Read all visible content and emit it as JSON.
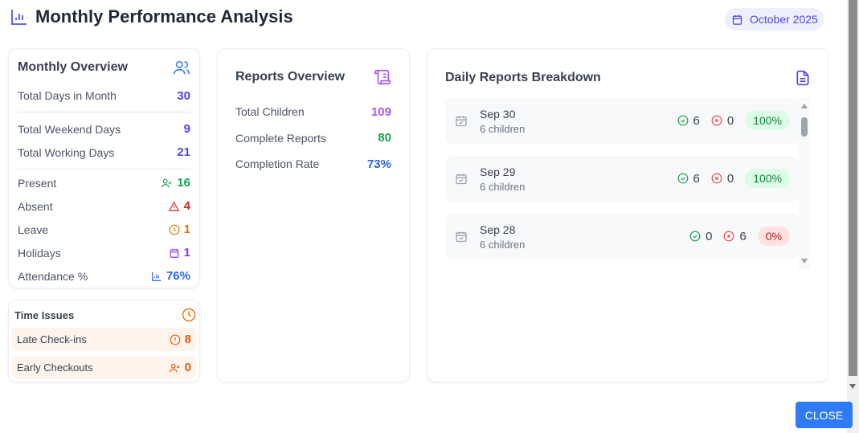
{
  "header": {
    "title": "Monthly Performance Analysis",
    "month": "October 2025"
  },
  "monthly": {
    "title": "Monthly Overview",
    "days": [
      {
        "label": "Total Days in Month",
        "value": "30"
      }
    ],
    "weekdays": [
      {
        "label": "Total Weekend Days",
        "value": "9"
      },
      {
        "label": "Total Working Days",
        "value": "21"
      }
    ],
    "attendance": [
      {
        "label": "Present",
        "value": "16",
        "color": "#16a34a"
      },
      {
        "label": "Absent",
        "value": "4",
        "color": "#dc2626"
      },
      {
        "label": "Leave",
        "value": "1",
        "color": "#d97706"
      },
      {
        "label": "Holidays",
        "value": "1",
        "color": "#9333ea"
      },
      {
        "label": "Attendance %",
        "value": "76%",
        "color": "#2563eb"
      }
    ]
  },
  "time_issues": {
    "title": "Time Issues",
    "items": [
      {
        "label": "Late Check-ins",
        "value": "8"
      },
      {
        "label": "Early Checkouts",
        "value": "0"
      }
    ]
  },
  "reports": {
    "title": "Reports Overview",
    "items": [
      {
        "label": "Total Children",
        "value": "109",
        "color": "#a855f7"
      },
      {
        "label": "Complete Reports",
        "value": "80",
        "color": "#16a34a"
      },
      {
        "label": "Completion Rate",
        "value": "73%",
        "color": "#2563eb"
      }
    ]
  },
  "daily": {
    "title": "Daily Reports Breakdown",
    "rows": [
      {
        "date": "Sep 30",
        "sub": "6 children",
        "ok": "6",
        "fail": "0",
        "pct": "100%",
        "good": true
      },
      {
        "date": "Sep 29",
        "sub": "6 children",
        "ok": "6",
        "fail": "0",
        "pct": "100%",
        "good": true
      },
      {
        "date": "Sep 28",
        "sub": "6 children",
        "ok": "0",
        "fail": "6",
        "pct": "0%",
        "good": false
      }
    ]
  },
  "footer": {
    "close": "CLOSE"
  }
}
